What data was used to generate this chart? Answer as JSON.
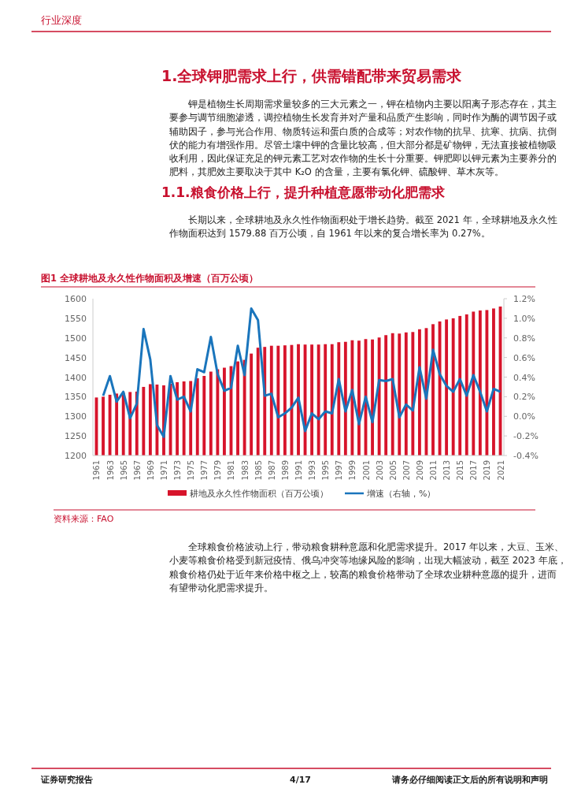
{
  "chart_data": {
    "type": "bar",
    "title": "图1  全球耕地及永久性作物面积及增速（百万公顷）",
    "annotations": [
      "行业深度",
      "1.全球钾肥需求上行，供需错配带来贸易需求",
      "钾是植物生长周期需求量较多的三大元素之一，钾在植物内主要以阳离子形态存在，其主要参与调节细胞渗透，调控植物生长发育并对产量和品质产生影响，同时作为酶的调节因子或辅助因子，参与光合作用、物质转运和蛋白质的合成等；对农作物的抗旱、抗寒、抗病、抗倒伏的能力有增强作用。尽管土壤中钾的含量比较高，但大部分都是矿物钾，无法直接被植物吸收利用，因此保证充足的钾元素工艺对农作物的生长十分重要。钾肥即以钾元素为主要养分的肥料，其肥效主要取决于其中 K₂O 的含量，主要有氯化钾、硫酸钾、草木灰等。",
      "1.1.粮食价格上行，提升种植意愿带动化肥需求",
      "长期以来，全球耕地及永久性作物面积处于增长趋势。截至 2021 年，全球耕地及永久性作物面积达到 1579.88 百万公顷，自 1961 年以来的复合增长率为 0.27%。",
      "资料来源：FAO",
      "全球粮食价格波动上行，带动粮食耕种意愿和化肥需求提升。2017 年以来，大豆、玉米、小麦等粮食价格受到新冠疫情、俄乌冲突等地缘风险的影响，出现大幅波动，截至 2023 年底，粮食价格仍处于近年来价格中枢之上，较高的粮食价格带动了全球农业耕种意愿的提升，进而有望带动化肥需求提升。",
      "证券研究报告",
      "4/17",
      "请务必仔细阅读正文后的所有说明和声明"
    ],
    "categories": [
      "1961",
      null,
      "1963",
      null,
      "1965",
      null,
      "1967",
      null,
      "1969",
      null,
      "1971",
      null,
      "1973",
      null,
      "1975",
      null,
      "1977",
      null,
      "1979",
      null,
      "1981",
      null,
      "1983",
      null,
      "1985",
      null,
      "1987",
      null,
      "1989",
      null,
      "1991",
      null,
      "1993",
      null,
      "1995",
      null,
      "1997",
      null,
      "1999",
      null,
      "2001",
      null,
      "2003",
      null,
      "2005",
      null,
      "2007",
      null,
      "2009",
      null,
      "2011",
      null,
      "2013",
      null,
      "2015",
      null,
      "2017",
      null,
      "2019",
      null,
      "2021"
    ],
    "series": [
      {
        "name": "耕地及永久性作物面积（百万公顷）",
        "color": "#d7142b",
        "values": [
          1348,
          1350,
          1355,
          1358,
          1360,
          1362,
          1363,
          1375,
          1382,
          1381,
          1379,
          1383,
          1387,
          1389,
          1390,
          1397,
          1403,
          1414,
          1420,
          1424,
          1428,
          1440,
          1444,
          1460,
          1475,
          1477,
          1480,
          1480,
          1481,
          1482,
          1484,
          1483,
          1483,
          1483,
          1484,
          1484,
          1489,
          1490,
          1494,
          1493,
          1497,
          1496,
          1501,
          1507,
          1512,
          1511,
          1514,
          1515,
          1522,
          1525,
          1535,
          1542,
          1547,
          1550,
          1556,
          1560,
          1567,
          1570,
          1571,
          1575,
          1580
        ]
      },
      {
        "name": "增速（右轴，%）",
        "type": "line",
        "axis": "y2",
        "color": "#1a75bc",
        "values": [
          null,
          0.21,
          0.41,
          0.15,
          0.25,
          -0.02,
          0.13,
          0.89,
          0.58,
          -0.09,
          -0.21,
          0.41,
          0.17,
          0.2,
          0.05,
          0.48,
          0.45,
          0.81,
          0.43,
          0.26,
          0.29,
          0.72,
          0.42,
          1.1,
          0.98,
          0.21,
          0.23,
          -0.01,
          0.03,
          0.09,
          0.19,
          -0.15,
          0.03,
          -0.03,
          0.05,
          0.03,
          0.38,
          0.05,
          0.27,
          -0.08,
          0.2,
          -0.06,
          0.37,
          0.36,
          0.38,
          -0.01,
          0.12,
          0.06,
          0.5,
          0.18,
          0.68,
          0.43,
          0.31,
          0.25,
          0.38,
          0.21,
          0.42,
          0.25,
          0.05,
          0.28,
          0.25
        ]
      }
    ],
    "ylim": [
      1200,
      1600
    ],
    "yticks": [
      1200,
      1250,
      1300,
      1350,
      1400,
      1450,
      1500,
      1550,
      1600
    ],
    "y2lim": [
      -0.4,
      1.2
    ],
    "y2ticks": [
      {
        "value": -0.4,
        "label": "-0.4%"
      },
      {
        "value": -0.2,
        "label": "-0.2%"
      },
      {
        "value": 0,
        "label": "0.0%"
      },
      {
        "value": 0.2,
        "label": "0.2%"
      },
      {
        "value": 0.4,
        "label": "0.4%"
      },
      {
        "value": 0.6,
        "label": "0.6%"
      },
      {
        "value": 0.8,
        "label": "0.8%"
      },
      {
        "value": 1.0,
        "label": "1.0%"
      },
      {
        "value": 1.2,
        "label": "1.2%"
      }
    ],
    "legend": "bottom",
    "marker": "none",
    "line_style": "solid",
    "grid": false
  }
}
